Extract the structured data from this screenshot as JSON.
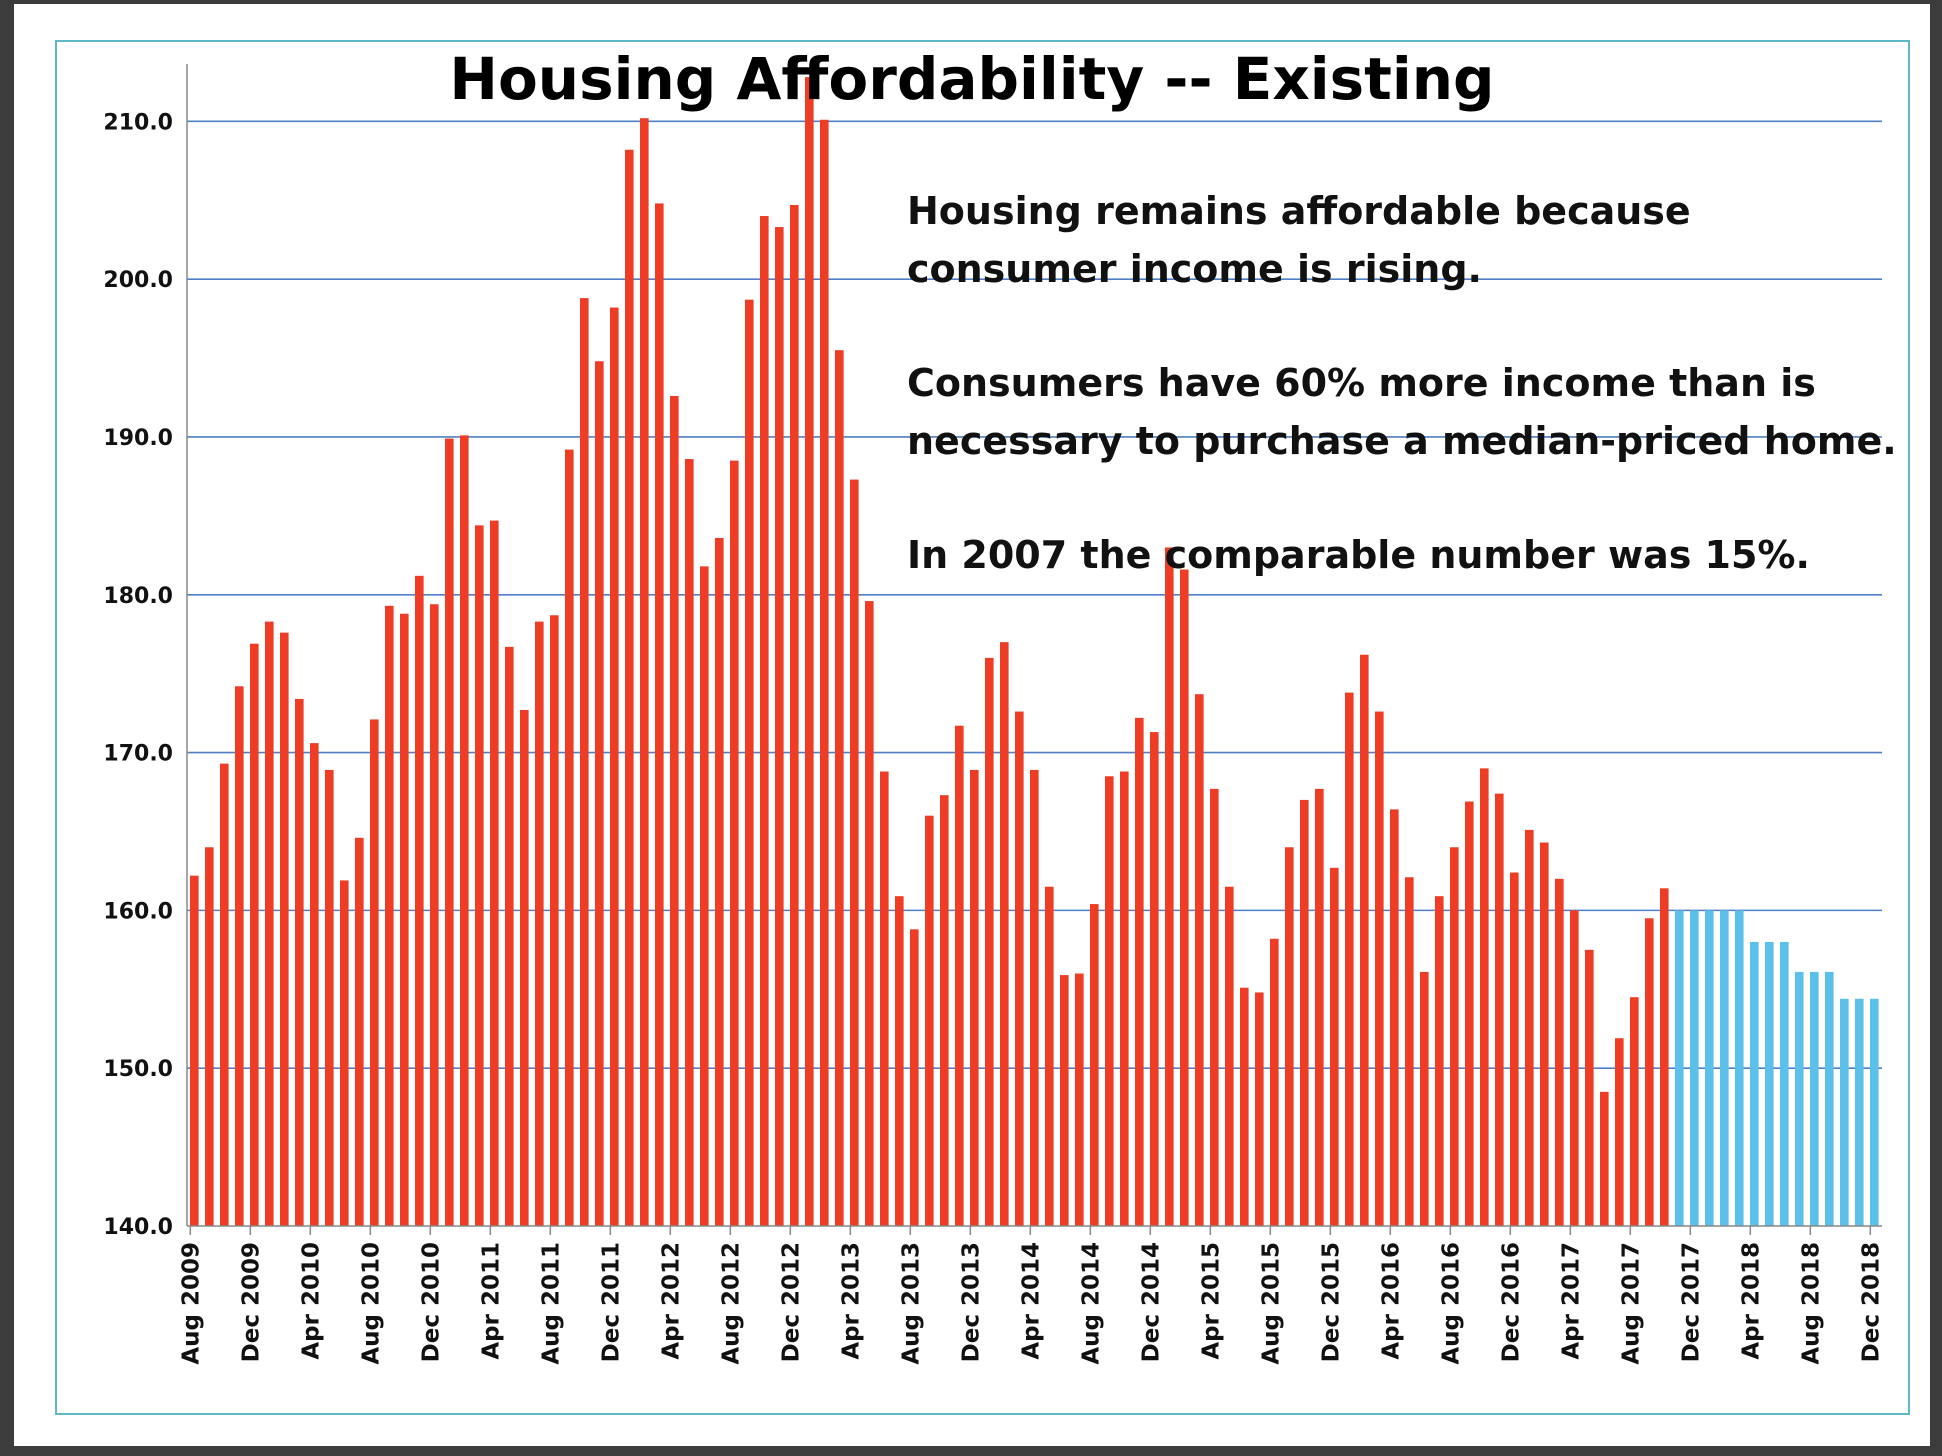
{
  "chart_data": {
    "type": "bar",
    "title": "Housing Affordability -- Existing",
    "xlabel": "",
    "ylabel": "",
    "ylim": [
      140,
      213
    ],
    "ytick_values": [
      140,
      150,
      160,
      170,
      180,
      190,
      200,
      210
    ],
    "ytick_labels": [
      "140.0",
      "150.0",
      "160.0",
      "170.0",
      "180.0",
      "190.0",
      "200.0",
      "210.0"
    ],
    "grid": true,
    "x_tick_labels": [
      "Aug 2009",
      "Dec 2009",
      "Apr 2010",
      "Aug 2010",
      "Dec 2010",
      "Apr 2011",
      "Aug 2011",
      "Dec 2011",
      "Apr 2012",
      "Aug 2012",
      "Dec 2012",
      "Apr 2013",
      "Aug 2013",
      "Dec 2013",
      "Apr 2014",
      "Aug 2014",
      "Dec 2014",
      "Apr 2015",
      "Aug 2015",
      "Dec 2015",
      "Apr 2016",
      "Aug 2016",
      "Dec 2016",
      "Apr 2017",
      "Aug 2017",
      "Dec 2017",
      "Apr 2018",
      "Aug 2018",
      "Dec 2018"
    ],
    "colors": {
      "actual": "#ee3d24",
      "forecast": "#5bc0ea"
    },
    "series": [
      {
        "key": "actual",
        "start": "Aug 2009",
        "values": [
          162.2,
          164.0,
          169.3,
          174.2,
          176.9,
          178.3,
          177.6,
          173.4,
          170.6,
          168.9,
          161.9,
          164.6,
          172.1,
          179.3,
          178.8,
          181.2,
          179.4,
          189.9,
          190.1,
          184.4,
          184.7,
          176.7,
          172.7,
          178.3,
          178.7,
          189.2,
          198.8,
          194.8,
          198.2,
          208.2,
          210.2,
          204.8,
          192.6,
          188.6,
          181.8,
          183.6,
          188.5,
          198.7,
          204.0,
          203.3,
          204.7,
          212.8,
          210.1,
          195.5,
          187.3,
          179.6,
          168.8,
          160.9,
          158.8,
          166.0,
          167.3,
          171.7,
          168.9,
          176.0,
          177.0,
          172.6,
          168.9,
          161.5,
          155.9,
          156.0,
          160.4,
          168.5,
          168.8,
          172.2,
          171.3,
          183.0,
          181.6,
          173.7,
          167.7,
          161.5,
          155.1,
          154.8,
          158.2,
          164.0,
          167.0,
          167.7,
          162.7,
          173.8,
          176.2,
          172.6,
          166.4,
          162.1,
          156.1,
          160.9,
          164.0,
          166.9,
          169.0,
          167.4,
          162.4,
          165.1,
          164.3,
          162.0,
          160.0,
          157.5,
          148.5,
          151.9,
          154.5,
          159.5,
          161.4
        ]
      },
      {
        "key": "forecast",
        "start": "Nov 2017",
        "values": [
          160.0,
          160.0,
          160.0,
          160.0,
          160.0,
          158.0,
          158.0,
          158.0,
          156.1,
          156.1,
          156.1,
          154.4,
          154.4,
          154.4
        ]
      }
    ],
    "annotations": [
      "Housing remains affordable because\nconsumer income is rising.",
      "Consumers have 60% more income than is\nnecessary to purchase a median-priced home.",
      "In 2007 the comparable number was 15%."
    ]
  }
}
